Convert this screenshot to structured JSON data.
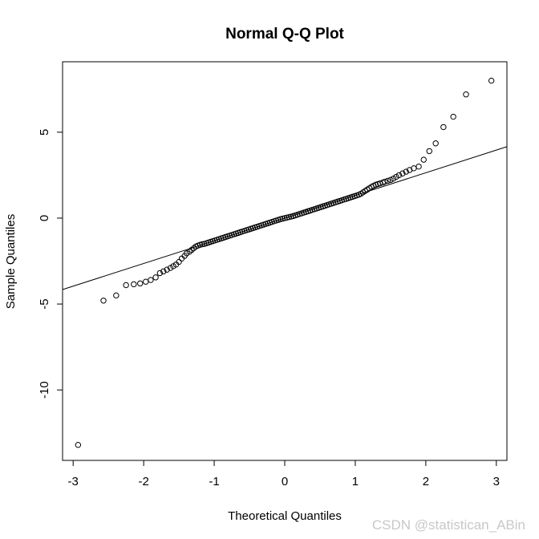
{
  "chart_data": {
    "type": "scatter",
    "title": "Normal Q-Q Plot",
    "xlabel": "Theoretical Quantiles",
    "ylabel": "Sample Quantiles",
    "xlim": [
      -3.15,
      3.15
    ],
    "ylim": [
      -14.1,
      9.1
    ],
    "xticks": [
      -3,
      -2,
      -1,
      0,
      1,
      2,
      3
    ],
    "yticks": [
      -10,
      -5,
      0,
      5
    ],
    "reference_line": {
      "intercept": 0.0,
      "slope": 1.32
    },
    "points": [
      [
        -2.93,
        -13.2
      ],
      [
        -2.57,
        -4.8
      ],
      [
        -2.39,
        -4.5
      ],
      [
        -2.25,
        -3.9
      ],
      [
        -2.14,
        -3.85
      ],
      [
        -2.05,
        -3.8
      ],
      [
        -1.97,
        -3.7
      ],
      [
        -1.9,
        -3.6
      ],
      [
        -1.83,
        -3.45
      ],
      [
        -1.77,
        -3.2
      ],
      [
        -1.72,
        -3.1
      ],
      [
        -1.67,
        -3.0
      ],
      [
        -1.62,
        -2.9
      ],
      [
        -1.58,
        -2.8
      ],
      [
        -1.54,
        -2.7
      ],
      [
        -1.5,
        -2.55
      ],
      [
        -1.46,
        -2.35
      ],
      [
        -1.42,
        -2.2
      ],
      [
        -1.39,
        -2.05
      ],
      [
        -1.35,
        -1.95
      ],
      [
        -1.32,
        -1.85
      ],
      [
        -1.29,
        -1.75
      ],
      [
        -1.26,
        -1.65
      ],
      [
        -1.23,
        -1.6
      ],
      [
        -1.2,
        -1.55
      ],
      [
        -1.17,
        -1.52
      ],
      [
        -1.14,
        -1.5
      ],
      [
        -1.11,
        -1.46
      ],
      [
        -1.08,
        -1.42
      ],
      [
        -1.05,
        -1.38
      ],
      [
        -1.02,
        -1.34
      ],
      [
        -0.99,
        -1.3
      ],
      [
        -0.96,
        -1.26
      ],
      [
        -0.93,
        -1.22
      ],
      [
        -0.9,
        -1.18
      ],
      [
        -0.87,
        -1.14
      ],
      [
        -0.84,
        -1.1
      ],
      [
        -0.81,
        -1.06
      ],
      [
        -0.78,
        -1.02
      ],
      [
        -0.75,
        -0.98
      ],
      [
        -0.72,
        -0.94
      ],
      [
        -0.69,
        -0.9
      ],
      [
        -0.66,
        -0.86
      ],
      [
        -0.63,
        -0.82
      ],
      [
        -0.6,
        -0.78
      ],
      [
        -0.57,
        -0.74
      ],
      [
        -0.54,
        -0.7
      ],
      [
        -0.51,
        -0.66
      ],
      [
        -0.48,
        -0.62
      ],
      [
        -0.45,
        -0.58
      ],
      [
        -0.42,
        -0.54
      ],
      [
        -0.39,
        -0.5
      ],
      [
        -0.36,
        -0.46
      ],
      [
        -0.33,
        -0.42
      ],
      [
        -0.3,
        -0.38
      ],
      [
        -0.27,
        -0.34
      ],
      [
        -0.24,
        -0.3
      ],
      [
        -0.21,
        -0.26
      ],
      [
        -0.18,
        -0.22
      ],
      [
        -0.15,
        -0.18
      ],
      [
        -0.12,
        -0.14
      ],
      [
        -0.09,
        -0.1
      ],
      [
        -0.06,
        -0.06
      ],
      [
        -0.03,
        -0.03
      ],
      [
        0.0,
        0.0
      ],
      [
        0.03,
        0.03
      ],
      [
        0.06,
        0.06
      ],
      [
        0.09,
        0.09
      ],
      [
        0.12,
        0.12
      ],
      [
        0.15,
        0.16
      ],
      [
        0.18,
        0.2
      ],
      [
        0.21,
        0.24
      ],
      [
        0.24,
        0.28
      ],
      [
        0.27,
        0.32
      ],
      [
        0.3,
        0.36
      ],
      [
        0.33,
        0.4
      ],
      [
        0.36,
        0.44
      ],
      [
        0.39,
        0.48
      ],
      [
        0.42,
        0.52
      ],
      [
        0.45,
        0.56
      ],
      [
        0.48,
        0.6
      ],
      [
        0.51,
        0.64
      ],
      [
        0.54,
        0.68
      ],
      [
        0.57,
        0.72
      ],
      [
        0.6,
        0.76
      ],
      [
        0.63,
        0.8
      ],
      [
        0.66,
        0.84
      ],
      [
        0.69,
        0.88
      ],
      [
        0.72,
        0.92
      ],
      [
        0.75,
        0.96
      ],
      [
        0.78,
        1.0
      ],
      [
        0.81,
        1.04
      ],
      [
        0.84,
        1.08
      ],
      [
        0.87,
        1.12
      ],
      [
        0.9,
        1.16
      ],
      [
        0.93,
        1.2
      ],
      [
        0.96,
        1.24
      ],
      [
        0.99,
        1.28
      ],
      [
        1.02,
        1.32
      ],
      [
        1.05,
        1.36
      ],
      [
        1.08,
        1.42
      ],
      [
        1.11,
        1.5
      ],
      [
        1.14,
        1.58
      ],
      [
        1.17,
        1.66
      ],
      [
        1.2,
        1.74
      ],
      [
        1.23,
        1.82
      ],
      [
        1.26,
        1.88
      ],
      [
        1.29,
        1.94
      ],
      [
        1.32,
        1.98
      ],
      [
        1.35,
        2.02
      ],
      [
        1.39,
        2.07
      ],
      [
        1.42,
        2.12
      ],
      [
        1.46,
        2.17
      ],
      [
        1.5,
        2.22
      ],
      [
        1.54,
        2.3
      ],
      [
        1.58,
        2.4
      ],
      [
        1.62,
        2.5
      ],
      [
        1.67,
        2.6
      ],
      [
        1.72,
        2.7
      ],
      [
        1.77,
        2.8
      ],
      [
        1.83,
        2.9
      ],
      [
        1.9,
        3.0
      ],
      [
        1.97,
        3.4
      ],
      [
        2.05,
        3.9
      ],
      [
        2.14,
        4.35
      ],
      [
        2.25,
        5.3
      ],
      [
        2.39,
        5.9
      ],
      [
        2.57,
        7.2
      ],
      [
        2.93,
        8.0
      ]
    ]
  },
  "watermark": "CSDN @statistican_ABin"
}
